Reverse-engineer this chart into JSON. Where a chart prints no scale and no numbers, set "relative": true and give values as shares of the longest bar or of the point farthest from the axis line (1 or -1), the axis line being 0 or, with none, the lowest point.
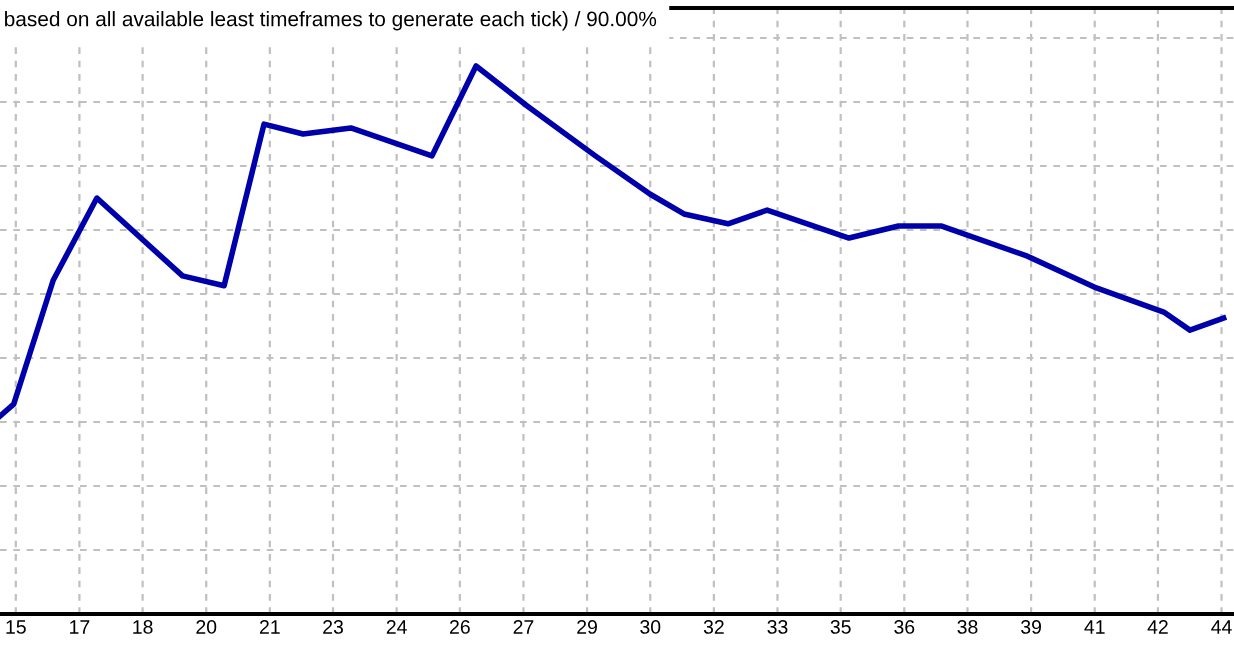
{
  "chart_data": {
    "type": "line",
    "title": "based on all available least timeframes to generate each tick) / 90.00%",
    "relative": true,
    "grid": true,
    "line_style": "solid",
    "marker": "none",
    "xlim": [
      14.62,
      44.3
    ],
    "xticks": [
      15,
      {
        "value": 16.53,
        "label": "17"
      },
      {
        "value": 18.05,
        "label": "18"
      },
      {
        "value": 19.58,
        "label": "20"
      },
      {
        "value": 21.11,
        "label": "21"
      },
      {
        "value": 22.63,
        "label": "23"
      },
      {
        "value": 24.16,
        "label": "24"
      },
      {
        "value": 25.68,
        "label": "26"
      },
      {
        "value": 27.21,
        "label": "27"
      },
      {
        "value": 28.74,
        "label": "29"
      },
      {
        "value": 30.26,
        "label": "30"
      },
      {
        "value": 31.79,
        "label": "32"
      },
      {
        "value": 33.32,
        "label": "33"
      },
      {
        "value": 34.84,
        "label": "35"
      },
      {
        "value": 36.37,
        "label": "36"
      },
      {
        "value": 37.89,
        "label": "38"
      },
      {
        "value": 39.42,
        "label": "39"
      },
      {
        "value": 40.95,
        "label": "41"
      },
      {
        "value": 42.47,
        "label": "42"
      },
      44
    ],
    "x": [
      14.62,
      14.95,
      15.9,
      16.95,
      19.01,
      20.01,
      20.97,
      21.91,
      23.06,
      25.01,
      26.07,
      27.3,
      28.94,
      30.26,
      31.07,
      32.13,
      33.07,
      35.04,
      36.23,
      37.27,
      39.33,
      40.99,
      42.61,
      43.24,
      44.05
    ],
    "series": [
      {
        "color": "#0000aa",
        "values": [
          0.361,
          0.383,
          0.609,
          0.759,
          0.617,
          0.599,
          0.894,
          0.876,
          0.887,
          0.836,
          1,
          0.927,
          0.836,
          0.766,
          0.73,
          0.712,
          0.737,
          0.686,
          0.708,
          0.708,
          0.653,
          0.595,
          0.551,
          0.518,
          0.54
        ]
      }
    ]
  }
}
